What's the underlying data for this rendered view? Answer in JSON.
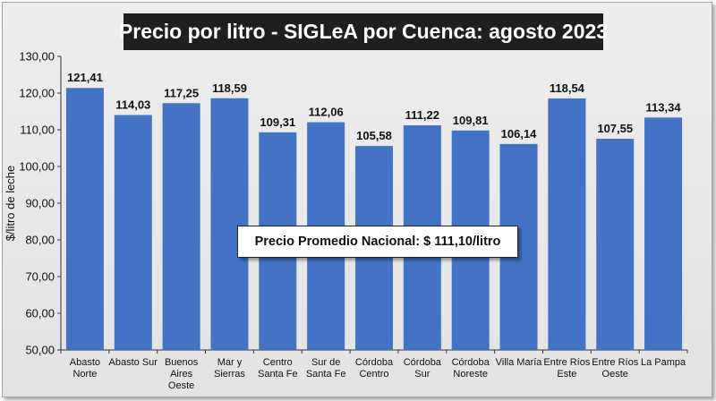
{
  "chart_data": {
    "type": "bar",
    "title": "Precio por litro - SIGLeA por Cuenca: agosto 2023",
    "ylabel": "$/litro de leche",
    "xlabel": "",
    "ylim": [
      50,
      130
    ],
    "ytick_step": 10,
    "yticks": [
      "50,00",
      "60,00",
      "70,00",
      "80,00",
      "90,00",
      "100,00",
      "110,00",
      "120,00",
      "130,00"
    ],
    "categories": [
      [
        "Abasto",
        "Norte"
      ],
      [
        "Abasto Sur"
      ],
      [
        "Buenos",
        "Aires",
        "Oeste"
      ],
      [
        "Mar y",
        "Sierras"
      ],
      [
        "Centro",
        "Santa Fe"
      ],
      [
        "Sur de",
        "Santa Fe"
      ],
      [
        "Córdoba",
        "Centro"
      ],
      [
        "Córdoba",
        "Sur"
      ],
      [
        "Córdoba",
        "Noreste"
      ],
      [
        "Villa María"
      ],
      [
        "Entre Ríos",
        "Este"
      ],
      [
        "Entre Ríos",
        "Oeste"
      ],
      [
        "La Pampa"
      ]
    ],
    "values": [
      121.41,
      114.03,
      117.25,
      118.59,
      109.31,
      112.06,
      105.58,
      111.22,
      109.81,
      106.14,
      118.54,
      107.55,
      113.34
    ],
    "value_labels": [
      "121,41",
      "114,03",
      "117,25",
      "118,59",
      "109,31",
      "112,06",
      "105,58",
      "111,22",
      "109,81",
      "106,14",
      "118,54",
      "107,55",
      "113,34"
    ],
    "annotation": "Precio Promedio Nacional: $ 111,10/litro",
    "bar_color": "#4472c4",
    "grid": false
  }
}
